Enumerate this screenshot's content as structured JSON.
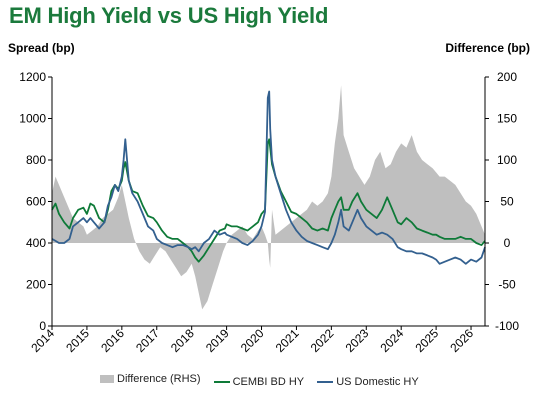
{
  "colors": {
    "title": "#1b7a3c",
    "difference": "#bfbfbf",
    "cembi": "#0e7a38",
    "us": "#33608f"
  },
  "chart_data": {
    "type": "line",
    "title": "EM High Yield vs US High Yield",
    "ylabel": "Spread (bp)",
    "ylabel_right": "Difference (bp)",
    "ylim": [
      0,
      1200
    ],
    "y_ticks": [
      "0",
      "200",
      "400",
      "600",
      "800",
      "1000",
      "1200"
    ],
    "ylim_right": [
      -100,
      200
    ],
    "y_ticks_right": [
      "-100",
      "-50",
      "0",
      "50",
      "100",
      "150",
      "200"
    ],
    "xlim": [
      2014.0,
      2026.4
    ],
    "x_ticks": [
      "2014",
      "2015",
      "2016",
      "2017",
      "2018",
      "2019",
      "2020",
      "2021",
      "2022",
      "2023",
      "2024",
      "2025",
      "2026"
    ],
    "grid": false,
    "legend_position": "bottom",
    "series": [
      {
        "name": "Difference (RHS)",
        "type": "area",
        "axis": "right",
        "x": [
          2014.0,
          2014.1,
          2014.2,
          2014.35,
          2014.5,
          2014.6,
          2014.75,
          2014.9,
          2015.0,
          2015.15,
          2015.3,
          2015.45,
          2015.6,
          2015.75,
          2015.9,
          2016.0,
          2016.1,
          2016.2,
          2016.35,
          2016.5,
          2016.65,
          2016.8,
          2016.95,
          2017.1,
          2017.25,
          2017.4,
          2017.55,
          2017.7,
          2017.85,
          2018.0,
          2018.1,
          2018.2,
          2018.3,
          2018.45,
          2018.6,
          2018.75,
          2018.9,
          2019.0,
          2019.15,
          2019.3,
          2019.45,
          2019.6,
          2019.75,
          2019.9,
          2020.0,
          2020.1,
          2020.18,
          2020.22,
          2020.25,
          2020.3,
          2020.4,
          2020.55,
          2020.7,
          2020.85,
          2021.0,
          2021.15,
          2021.3,
          2021.45,
          2021.6,
          2021.75,
          2021.9,
          2022.0,
          2022.1,
          2022.2,
          2022.28,
          2022.35,
          2022.5,
          2022.65,
          2022.8,
          2022.95,
          2023.1,
          2023.25,
          2023.4,
          2023.55,
          2023.7,
          2023.85,
          2024.0,
          2024.15,
          2024.3,
          2024.45,
          2024.6,
          2024.75,
          2024.9,
          2025.0,
          2025.1,
          2025.25,
          2025.4,
          2025.55,
          2025.7,
          2025.85,
          2026.0,
          2026.15,
          2026.3,
          2026.4
        ],
        "values": [
          60,
          80,
          70,
          55,
          40,
          30,
          25,
          20,
          10,
          15,
          20,
          30,
          35,
          40,
          55,
          70,
          50,
          30,
          5,
          -10,
          -20,
          -25,
          -15,
          -5,
          -10,
          -20,
          -30,
          -40,
          -35,
          -25,
          -40,
          -60,
          -80,
          -70,
          -50,
          -30,
          -10,
          0,
          10,
          15,
          20,
          10,
          5,
          15,
          20,
          10,
          0,
          -20,
          -30,
          40,
          10,
          15,
          20,
          25,
          30,
          35,
          40,
          50,
          45,
          50,
          60,
          80,
          120,
          150,
          190,
          130,
          110,
          90,
          80,
          70,
          80,
          100,
          110,
          90,
          95,
          110,
          120,
          115,
          130,
          110,
          100,
          95,
          90,
          85,
          80,
          80,
          75,
          70,
          60,
          50,
          45,
          35,
          20,
          10
        ]
      },
      {
        "name": "CEMBI BD HY",
        "type": "line",
        "axis": "left",
        "x": [
          2014.0,
          2014.1,
          2014.2,
          2014.35,
          2014.5,
          2014.6,
          2014.75,
          2014.9,
          2015.0,
          2015.1,
          2015.2,
          2015.35,
          2015.5,
          2015.6,
          2015.7,
          2015.8,
          2015.9,
          2016.0,
          2016.05,
          2016.1,
          2016.2,
          2016.3,
          2016.45,
          2016.6,
          2016.75,
          2016.9,
          2017.0,
          2017.15,
          2017.3,
          2017.45,
          2017.6,
          2017.75,
          2017.9,
          2018.0,
          2018.1,
          2018.2,
          2018.35,
          2018.5,
          2018.65,
          2018.8,
          2018.95,
          2019.0,
          2019.15,
          2019.3,
          2019.45,
          2019.6,
          2019.75,
          2019.9,
          2020.0,
          2020.1,
          2020.18,
          2020.22,
          2020.25,
          2020.3,
          2020.4,
          2020.55,
          2020.7,
          2020.85,
          2021.0,
          2021.15,
          2021.3,
          2021.45,
          2021.6,
          2021.75,
          2021.9,
          2022.0,
          2022.1,
          2022.2,
          2022.28,
          2022.35,
          2022.5,
          2022.6,
          2022.75,
          2022.85,
          2023.0,
          2023.15,
          2023.3,
          2023.45,
          2023.6,
          2023.75,
          2023.9,
          2024.0,
          2024.15,
          2024.3,
          2024.45,
          2024.6,
          2024.75,
          2024.9,
          2025.0,
          2025.1,
          2025.25,
          2025.4,
          2025.55,
          2025.7,
          2025.85,
          2026.0,
          2026.15,
          2026.3,
          2026.4
        ],
        "values": [
          560,
          590,
          540,
          500,
          470,
          520,
          560,
          570,
          540,
          590,
          580,
          520,
          500,
          560,
          650,
          680,
          660,
          700,
          760,
          790,
          700,
          650,
          640,
          580,
          530,
          520,
          500,
          460,
          430,
          420,
          420,
          400,
          380,
          360,
          330,
          310,
          340,
          380,
          420,
          460,
          470,
          490,
          480,
          480,
          470,
          460,
          480,
          500,
          540,
          560,
          880,
          900,
          860,
          780,
          720,
          650,
          600,
          550,
          540,
          520,
          500,
          470,
          460,
          470,
          460,
          520,
          560,
          600,
          620,
          560,
          560,
          600,
          640,
          600,
          560,
          540,
          520,
          560,
          620,
          560,
          500,
          490,
          520,
          500,
          470,
          460,
          450,
          440,
          440,
          430,
          420,
          420,
          420,
          430,
          420,
          420,
          400,
          390,
          410
        ]
      },
      {
        "name": "US Domestic HY",
        "type": "line",
        "axis": "left",
        "x": [
          2014.0,
          2014.1,
          2014.2,
          2014.35,
          2014.5,
          2014.6,
          2014.75,
          2014.9,
          2015.0,
          2015.1,
          2015.2,
          2015.35,
          2015.5,
          2015.6,
          2015.7,
          2015.8,
          2015.9,
          2016.0,
          2016.05,
          2016.1,
          2016.2,
          2016.3,
          2016.45,
          2016.6,
          2016.75,
          2016.9,
          2017.0,
          2017.15,
          2017.3,
          2017.45,
          2017.6,
          2017.75,
          2017.9,
          2018.0,
          2018.1,
          2018.2,
          2018.35,
          2018.5,
          2018.65,
          2018.8,
          2018.95,
          2019.0,
          2019.15,
          2019.3,
          2019.45,
          2019.6,
          2019.75,
          2019.9,
          2020.0,
          2020.1,
          2020.18,
          2020.22,
          2020.25,
          2020.3,
          2020.4,
          2020.55,
          2020.7,
          2020.85,
          2021.0,
          2021.15,
          2021.3,
          2021.45,
          2021.6,
          2021.75,
          2021.9,
          2022.0,
          2022.1,
          2022.2,
          2022.28,
          2022.35,
          2022.5,
          2022.6,
          2022.75,
          2022.85,
          2023.0,
          2023.15,
          2023.3,
          2023.45,
          2023.6,
          2023.75,
          2023.9,
          2024.0,
          2024.15,
          2024.3,
          2024.45,
          2024.6,
          2024.75,
          2024.9,
          2025.0,
          2025.1,
          2025.25,
          2025.4,
          2025.55,
          2025.7,
          2025.85,
          2026.0,
          2026.15,
          2026.3,
          2026.4
        ],
        "values": [
          420,
          410,
          400,
          400,
          420,
          480,
          500,
          520,
          500,
          520,
          500,
          470,
          500,
          580,
          620,
          680,
          650,
          720,
          800,
          900,
          700,
          640,
          600,
          540,
          480,
          460,
          420,
          400,
          390,
          380,
          390,
          390,
          380,
          370,
          380,
          360,
          400,
          420,
          460,
          440,
          450,
          440,
          430,
          420,
          400,
          390,
          410,
          440,
          480,
          550,
          1100,
          1130,
          950,
          800,
          720,
          640,
          560,
          500,
          460,
          430,
          410,
          400,
          390,
          380,
          370,
          400,
          440,
          500,
          560,
          480,
          460,
          500,
          560,
          520,
          480,
          460,
          440,
          450,
          440,
          420,
          380,
          370,
          360,
          360,
          350,
          350,
          340,
          330,
          320,
          300,
          310,
          320,
          330,
          320,
          300,
          320,
          310,
          330,
          380
        ]
      }
    ]
  },
  "legend": {
    "difference": "Difference (RHS)",
    "cembi": "CEMBI BD HY",
    "us": "US Domestic HY"
  }
}
